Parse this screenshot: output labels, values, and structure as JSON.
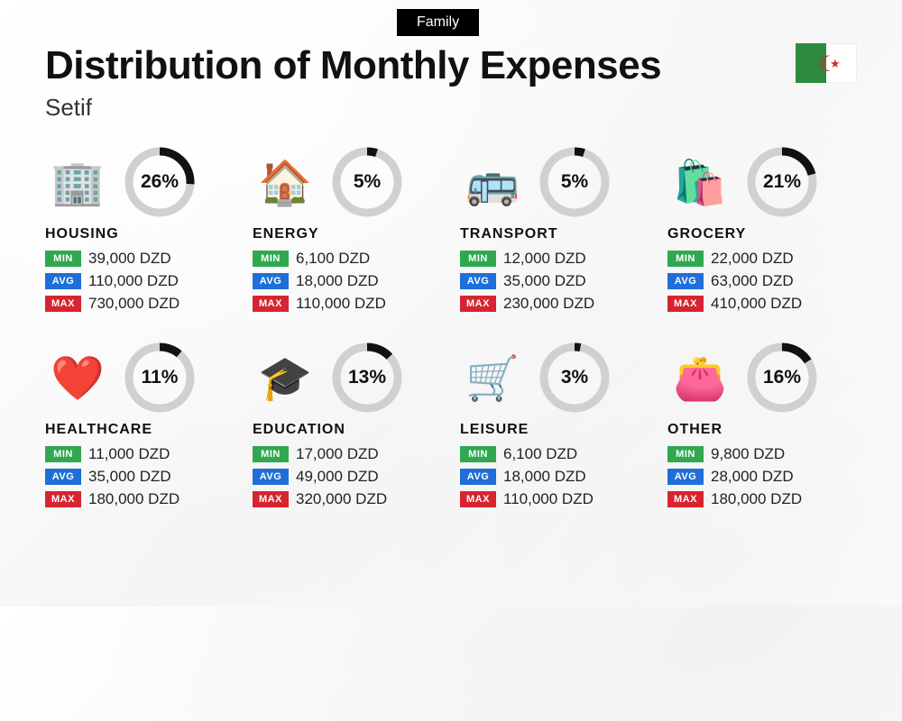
{
  "header": {
    "badge": "Family",
    "title": "Distribution of Monthly Expenses",
    "subtitle": "Setif"
  },
  "labels": {
    "min": "MIN",
    "avg": "AVG",
    "max": "MAX"
  },
  "currency": "DZD",
  "ring": {
    "radius": 34,
    "stroke_fg": "#111111",
    "stroke_bg": "#d0d0d0",
    "stroke_width": 9
  },
  "badge_colors": {
    "min": "#2fa84f",
    "avg": "#1e6fd9",
    "max": "#d8242f"
  },
  "categories": [
    {
      "key": "housing",
      "label": "HOUSING",
      "percent": 26,
      "min": "39,000",
      "avg": "110,000",
      "max": "730,000",
      "icon": "🏢"
    },
    {
      "key": "energy",
      "label": "ENERGY",
      "percent": 5,
      "min": "6,100",
      "avg": "18,000",
      "max": "110,000",
      "icon": "🏠"
    },
    {
      "key": "transport",
      "label": "TRANSPORT",
      "percent": 5,
      "min": "12,000",
      "avg": "35,000",
      "max": "230,000",
      "icon": "🚌"
    },
    {
      "key": "grocery",
      "label": "GROCERY",
      "percent": 21,
      "min": "22,000",
      "avg": "63,000",
      "max": "410,000",
      "icon": "🛍️"
    },
    {
      "key": "healthcare",
      "label": "HEALTHCARE",
      "percent": 11,
      "min": "11,000",
      "avg": "35,000",
      "max": "180,000",
      "icon": "❤️"
    },
    {
      "key": "education",
      "label": "EDUCATION",
      "percent": 13,
      "min": "17,000",
      "avg": "49,000",
      "max": "320,000",
      "icon": "🎓"
    },
    {
      "key": "leisure",
      "label": "LEISURE",
      "percent": 3,
      "min": "6,100",
      "avg": "18,000",
      "max": "110,000",
      "icon": "🛒"
    },
    {
      "key": "other",
      "label": "OTHER",
      "percent": 16,
      "min": "9,800",
      "avg": "28,000",
      "max": "180,000",
      "icon": "👛"
    }
  ]
}
